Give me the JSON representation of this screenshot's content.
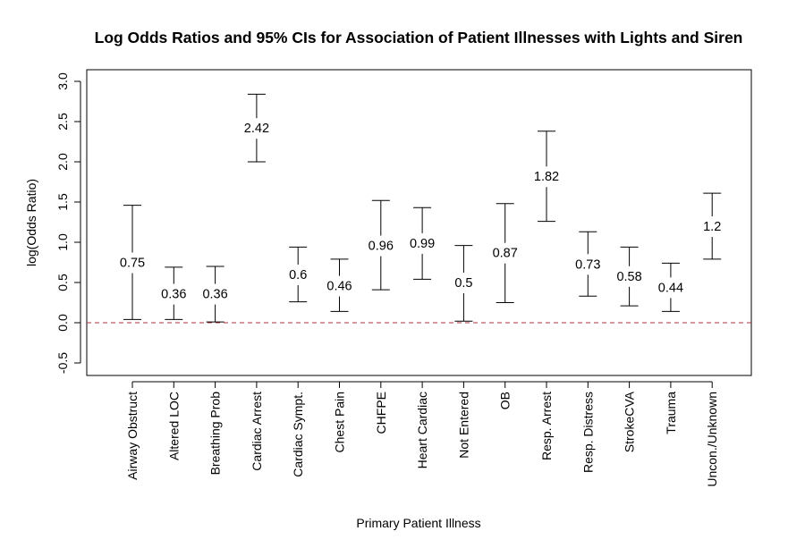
{
  "chart_data": {
    "type": "errorbar",
    "title": "Log Odds Ratios and 95% CIs for Association of Patient Illnesses with Lights and Siren",
    "xlabel": "Primary Patient Illness",
    "ylabel": "log(Odds Ratio)",
    "ylim": [
      -0.65,
      3.15
    ],
    "yticks": [
      "-0.5",
      "0.0",
      "0.5",
      "1.0",
      "1.5",
      "2.0",
      "2.5",
      "3.0"
    ],
    "reference_line": {
      "y": 0.0,
      "style": "dashed",
      "color": "#b03040"
    },
    "grid": false,
    "categories": [
      "Airway Obstruct",
      "Altered LOC",
      "Breathing Prob",
      "Cardiac Arrest",
      "Cardiac Sympt.",
      "Chest Pain",
      "CHFPE",
      "Heart Cardiac",
      "Not Entered",
      "OB",
      "Resp. Arrest",
      "Resp. Distress",
      "StrokeCVA",
      "Trauma",
      "Uncon./Unknown"
    ],
    "estimates": [
      0.75,
      0.36,
      0.36,
      2.42,
      0.6,
      0.46,
      0.96,
      0.99,
      0.5,
      0.87,
      1.82,
      0.73,
      0.58,
      0.44,
      1.2
    ],
    "estimate_labels": [
      "0.75",
      "0.36",
      "0.36",
      "2.42",
      "0.6",
      "0.46",
      "0.96",
      "0.99",
      "0.5",
      "0.87",
      "1.82",
      "0.73",
      "0.58",
      "0.44",
      "1.2"
    ],
    "lower": [
      0.04,
      0.04,
      0.01,
      2.0,
      0.26,
      0.14,
      0.41,
      0.54,
      0.02,
      0.25,
      1.26,
      0.33,
      0.21,
      0.14,
      0.79
    ],
    "upper": [
      1.46,
      0.69,
      0.7,
      2.84,
      0.94,
      0.79,
      1.52,
      1.43,
      0.96,
      1.48,
      2.38,
      1.13,
      0.94,
      0.74,
      1.61
    ]
  }
}
